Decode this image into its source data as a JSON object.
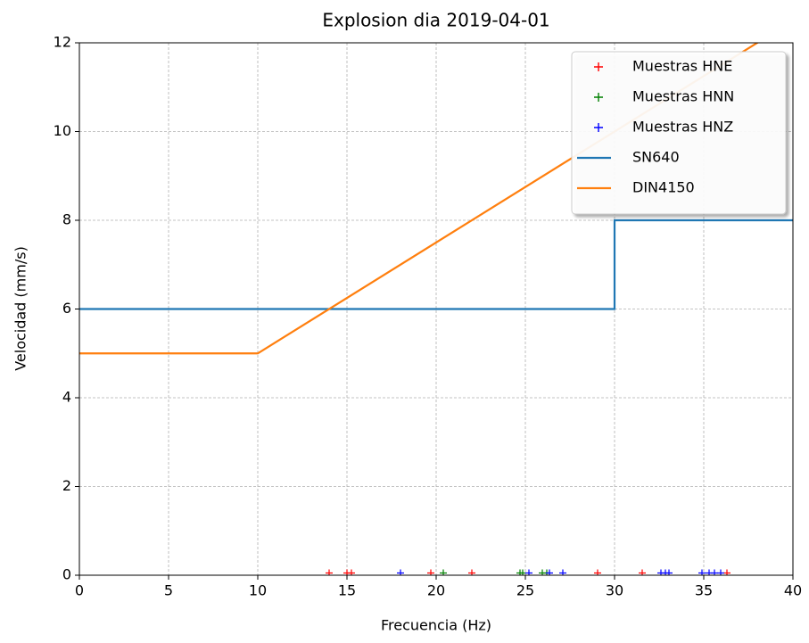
{
  "chart_data": {
    "type": "line",
    "title": "Explosion dia 2019-04-01",
    "x_label": "Frecuencia (Hz)",
    "y_label": "Velocidad (mm/s)",
    "xlim": [
      0,
      40
    ],
    "ylim": [
      0,
      12
    ],
    "xticks": [
      0,
      5,
      10,
      15,
      20,
      25,
      30,
      35,
      40
    ],
    "yticks": [
      0,
      2,
      4,
      6,
      8,
      10,
      12
    ],
    "grid": true,
    "legend": "upper right",
    "series": [
      {
        "name": "Muestras HNE",
        "color": "#ff0000",
        "marker": "+",
        "x": [
          14,
          15,
          15.25,
          19.7,
          22,
          29.05,
          31.55,
          36.3
        ],
        "values": [
          0.05,
          0.05,
          0.05,
          0.05,
          0.05,
          0.05,
          0.05,
          0.05
        ]
      },
      {
        "name": "Muestras HNN",
        "color": "#008000",
        "marker": "+",
        "x": [
          20.4,
          24.7,
          24.85,
          25.95,
          26.2
        ],
        "values": [
          0.05,
          0.05,
          0.05,
          0.05,
          0.05
        ]
      },
      {
        "name": "Muestras HNZ",
        "color": "#0000ff",
        "marker": "+",
        "x": [
          18,
          25.2,
          26.35,
          27.1,
          32.6,
          32.85,
          33.05,
          34.9,
          35.3,
          35.6,
          35.95
        ],
        "values": [
          0.05,
          0.05,
          0.05,
          0.05,
          0.05,
          0.05,
          0.05,
          0.05,
          0.05,
          0.05,
          0.05
        ]
      },
      {
        "name": "SN640",
        "color": "#1f77b4",
        "x": [
          0,
          30,
          30,
          40
        ],
        "values": [
          6,
          6,
          8,
          8
        ]
      },
      {
        "name": "DIN4150",
        "color": "#ff7f0e",
        "x": [
          0,
          10,
          40
        ],
        "values": [
          5,
          5,
          12.5
        ]
      }
    ]
  }
}
